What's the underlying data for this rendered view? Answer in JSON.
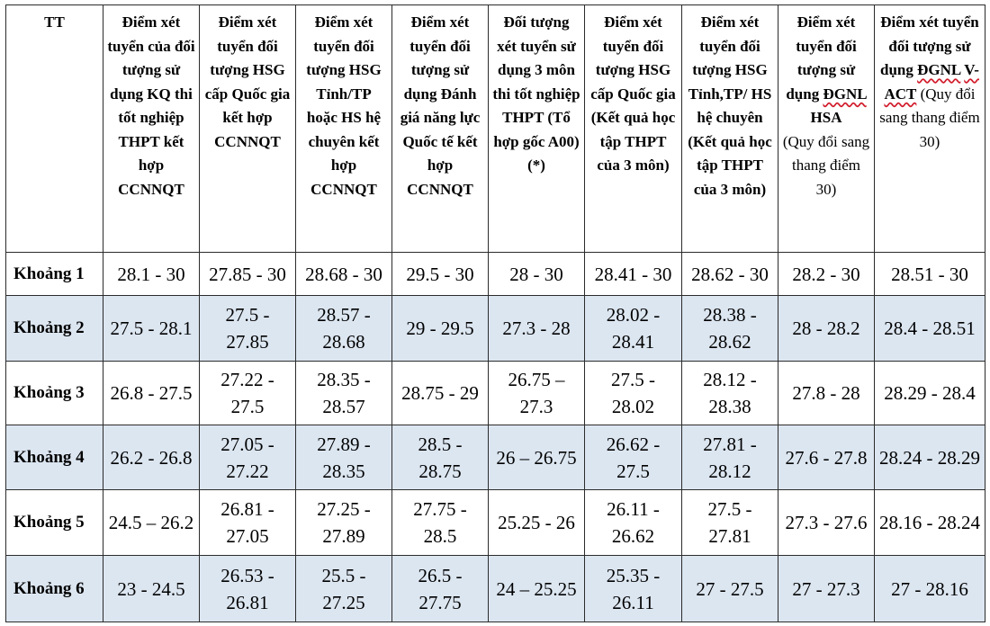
{
  "table": {
    "headers": {
      "tt": "TT",
      "c1": "Điểm xét tuyển của đối tượng sử dụng KQ thi tốt nghiệp THPT kết hợp CCNNQT",
      "c2": "Điểm xét tuyển đối tượng HSG cấp Quốc gia kết hợp CCNNQT",
      "c3": "Điểm xét tuyển đối tượng HSG Tỉnh/TP hoặc HS hệ chuyên kết hợp CCNNQT",
      "c4": "Điểm xét tuyển đối tượng sử dụng Đánh giá năng lực Quốc tế kết hợp CCNNQT",
      "c5": "Đối tượng xét tuyển sử dụng 3 môn thi tốt nghiệp THPT (Tổ hợp gốc A00) (*)",
      "c6": "Điểm xét tuyển đối tượng HSG cấp Quốc gia (Kết quả học tập THPT của 3 môn)",
      "c7": "Điểm xét tuyển đối tượng HSG Tỉnh,TP/ HS hệ chuyên (Kết quả học tập THPT của 3 môn)",
      "c8": {
        "prefix": "Điểm xét tuyển đối tượng sử dụng ",
        "underlined": "ĐGNL",
        "suffix": " HSA",
        "note": "(Quy đổi sang thang điểm 30)"
      },
      "c9": {
        "prefix": "Điểm xét tuyển đối tượng sử dụng ",
        "underlined_1": "ĐGNL",
        "space": " ",
        "underlined_2": "V-ACT",
        "note": " (Quy đổi sang thang điểm 30)"
      }
    },
    "rows": [
      {
        "label": "Khoảng 1",
        "cells": [
          "28.1 - 30",
          "27.85 - 30",
          "28.68 - 30",
          "29.5 - 30",
          "28 - 30",
          "28.41 - 30",
          "28.62 - 30",
          "28.2 - 30",
          "28.51 - 30"
        ]
      },
      {
        "label": "Khoảng 2",
        "cells": [
          "27.5 - 28.1",
          "27.5 - 27.85",
          "28.57 - 28.68",
          "29 - 29.5",
          "27.3 - 28",
          "28.02 - 28.41",
          "28.38 - 28.62",
          "28 - 28.2",
          "28.4 - 28.51"
        ]
      },
      {
        "label": "Khoảng 3",
        "cells": [
          "26.8 - 27.5",
          "27.22 - 27.5",
          "28.35 - 28.57",
          "28.75 - 29",
          "26.75 – 27.3",
          "27.5 - 28.02",
          "28.12 - 28.38",
          "27.8 - 28",
          "28.29 - 28.4"
        ]
      },
      {
        "label": "Khoảng 4",
        "cells": [
          "26.2 - 26.8",
          "27.05 - 27.22",
          "27.89 - 28.35",
          "28.5 - 28.75",
          "26 – 26.75",
          "26.62 - 27.5",
          "27.81 - 28.12",
          "27.6 - 27.8",
          "28.24 - 28.29"
        ]
      },
      {
        "label": "Khoảng 5",
        "cells": [
          "24.5 – 26.2",
          "26.81 - 27.05",
          "27.25 - 27.89",
          "27.75 - 28.5",
          "25.25 - 26",
          "26.11 - 26.62",
          "27.5 - 27.81",
          "27.3 - 27.6",
          "28.16 - 28.24"
        ]
      },
      {
        "label": "Khoảng 6",
        "cells": [
          "23 - 24.5",
          "26.53 - 26.81",
          "25.5 - 27.25",
          "26.5 - 27.75",
          "24 – 25.25",
          "25.35 - 26.11",
          "27 - 27.5",
          "27 - 27.3",
          "27 - 28.16"
        ]
      }
    ],
    "colors": {
      "shaded_row": "#dce6f1",
      "border": "#2b2b2b",
      "underline": "#d11a2a"
    }
  }
}
